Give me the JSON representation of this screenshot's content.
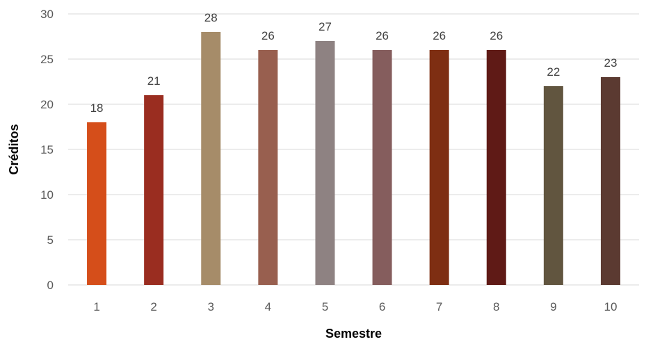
{
  "chart_data": {
    "type": "bar",
    "title": "",
    "xlabel": "Semestre",
    "ylabel": "Créditos",
    "categories": [
      "1",
      "2",
      "3",
      "4",
      "5",
      "6",
      "7",
      "8",
      "9",
      "10"
    ],
    "values": [
      18,
      21,
      28,
      26,
      27,
      26,
      26,
      26,
      22,
      23
    ],
    "colors": [
      "#D54E1A",
      "#9A2D20",
      "#A68C69",
      "#985F4F",
      "#8E8282",
      "#855D5D",
      "#7E2E12",
      "#5F1A16",
      "#61553F",
      "#5B3A31"
    ],
    "ylim": [
      0,
      30
    ],
    "yticks": [
      0,
      5,
      10,
      15,
      20,
      25,
      30
    ],
    "grid": true,
    "legend": "none",
    "data_labels": true
  }
}
